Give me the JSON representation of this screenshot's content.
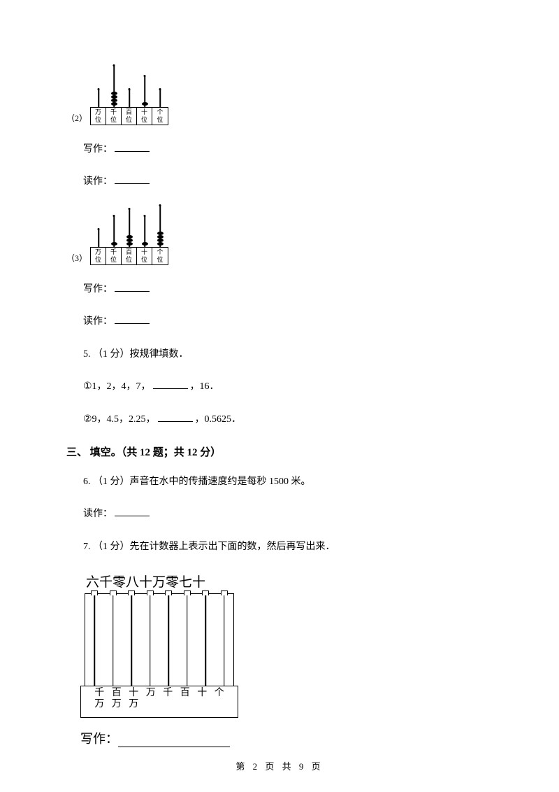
{
  "q2": {
    "paren": "（2）",
    "abacus": {
      "places": [
        "万位",
        "千位",
        "百位",
        "十位",
        "个位"
      ],
      "beads": [
        0,
        4,
        0,
        1,
        0
      ]
    },
    "write_label": "写作：",
    "read_label": "读作："
  },
  "q3": {
    "paren": "（3）",
    "abacus": {
      "places": [
        "万位",
        "千位",
        "百位",
        "十位",
        "个位"
      ],
      "beads": [
        0,
        1,
        3,
        1,
        4
      ]
    },
    "write_label": "写作：",
    "read_label": "读作："
  },
  "q5": {
    "stem": "5.  （1 分）按规律填数．",
    "line1a": "①1，2，4，7，",
    "line1b": "，16．",
    "line2a": "②9，4.5，2.25，",
    "line2b": "，0.5625．"
  },
  "section3": "三、 填空。（共 12 题；共 12 分）",
  "q6": {
    "stem": "6.  （1 分）声音在水中的传播速度约是每秒 1500 米。",
    "read_label": "读作："
  },
  "q7": {
    "stem": "7.  （1 分）先在计数器上表示出下面的数，然后再写出来．",
    "title": "六千零八十万零七十",
    "places": [
      "千万",
      "百万",
      "十万",
      "万",
      "千",
      "百",
      "十",
      "个"
    ],
    "write_label": "写作："
  },
  "footer": "第 2 页 共 9 页"
}
